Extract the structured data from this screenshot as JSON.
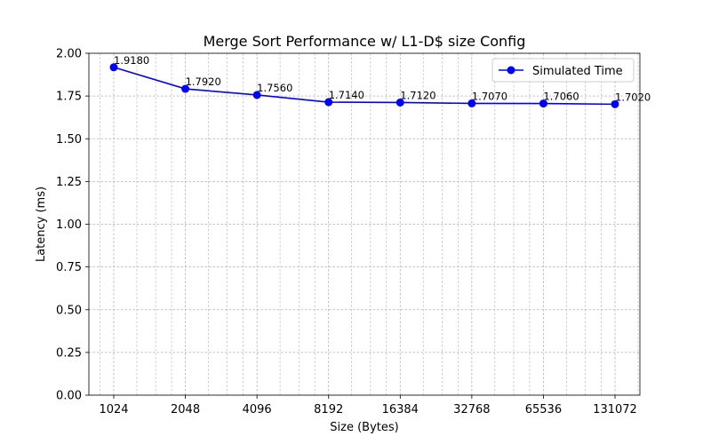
{
  "chart_data": {
    "type": "line",
    "title": "Merge Sort Performance w/ L1-D$ size Config",
    "xlabel": "Size (Bytes)",
    "ylabel": "Latency (ms)",
    "x_scale": "log2",
    "x": [
      1024,
      2048,
      4096,
      8192,
      16384,
      32768,
      65536,
      131072
    ],
    "x_tick_labels": [
      "1024",
      "2048",
      "4096",
      "8192",
      "16384",
      "32768",
      "65536",
      "131072"
    ],
    "ylim": [
      0,
      2.0
    ],
    "y_ticks": [
      0.0,
      0.25,
      0.5,
      0.75,
      1.0,
      1.25,
      1.5,
      1.75,
      2.0
    ],
    "y_tick_labels": [
      "0.00",
      "0.25",
      "0.50",
      "0.75",
      "1.00",
      "1.25",
      "1.50",
      "1.75",
      "2.00"
    ],
    "grid": true,
    "legend_position": "top-right",
    "series": [
      {
        "name": "Simulated Time",
        "color": "#0000ff",
        "marker": "circle",
        "values": [
          1.918,
          1.792,
          1.756,
          1.714,
          1.712,
          1.707,
          1.706,
          1.702
        ],
        "data_labels": [
          "1.9180",
          "1.7920",
          "1.7560",
          "1.7140",
          "1.7120",
          "1.7070",
          "1.7060",
          "1.7020"
        ]
      }
    ]
  }
}
